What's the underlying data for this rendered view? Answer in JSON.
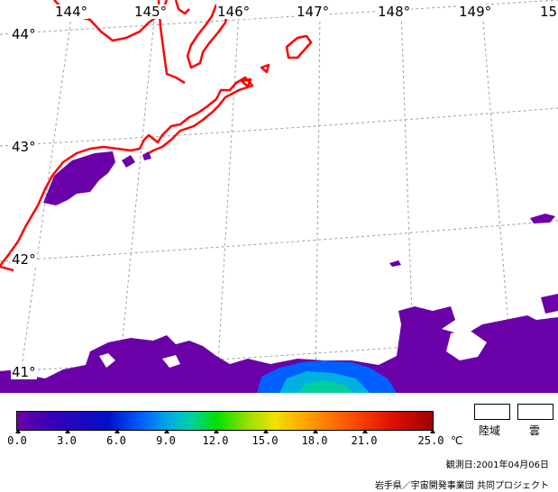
{
  "map": {
    "longitude_labels": [
      "144°",
      "145°",
      "146°",
      "147°",
      "148°",
      "149°",
      "15"
    ],
    "latitude_labels": [
      "44°",
      "43°",
      "42°",
      "41°"
    ],
    "coastline_color": "#ff0000",
    "grid_color": "#a0a0a0",
    "sst_color_scale_min": 0.0,
    "sst_color_scale_max": 25.0
  },
  "colorbar": {
    "ticks": [
      "0.0",
      "3.0",
      "6.0",
      "9.0",
      "12.0",
      "15.0",
      "18.0",
      "21.0",
      "25.0"
    ],
    "unit": "℃"
  },
  "legend": {
    "land": "陸域",
    "cloud": "雲"
  },
  "footer": {
    "observation_date": "観測日:2001年04月06日",
    "credit": "岩手県／宇宙開発事業団 共同プロジェクト"
  }
}
